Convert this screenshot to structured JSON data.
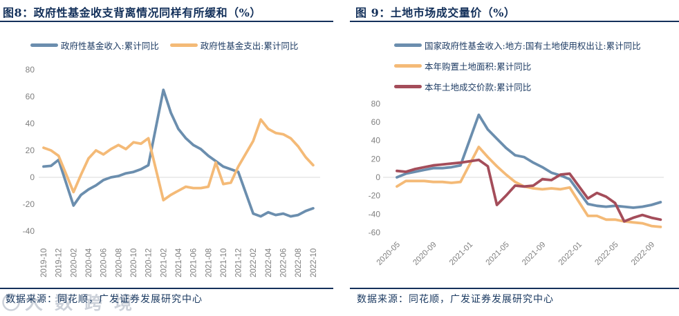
{
  "watermark": {
    "text": "大数跨境"
  },
  "figure_left": {
    "source_note": "数据来源：同花顺，广发证券发展研究中心"
  },
  "figure_right": {
    "source_note": "数据来源：同花顺，广发证券发展研究中心"
  },
  "colors": {
    "navy_text": "#13305a",
    "tick_gray": "#7f7f7f",
    "zero_line": "#d8d8d8"
  },
  "chart_data": [
    {
      "type": "line",
      "title": "图8：政府性基金收支背离情况同样有所缓和（%）",
      "ylabel": "",
      "xlabel": "",
      "ylim": [
        -40,
        80
      ],
      "y_ticks": [
        80,
        60,
        40,
        20,
        0,
        -20,
        -40
      ],
      "x_tick_every": 2,
      "grid": "zero-line-only",
      "legend_position": "top",
      "categories": [
        "2019-10",
        "2019-11",
        "2019-12",
        "2020-01",
        "2020-02",
        "2020-03",
        "2020-04",
        "2020-05",
        "2020-06",
        "2020-07",
        "2020-08",
        "2020-09",
        "2020-10",
        "2020-11",
        "2020-12",
        "2021-01",
        "2021-02",
        "2021-03",
        "2021-04",
        "2021-05",
        "2021-06",
        "2021-07",
        "2021-08",
        "2021-09",
        "2021-10",
        "2021-11",
        "2021-12",
        "2022-01",
        "2022-02",
        "2022-03",
        "2022-04",
        "2022-05",
        "2022-06",
        "2022-07",
        "2022-08",
        "2022-09",
        "2022-10"
      ],
      "series": [
        {
          "name": "政府性基金收入:累计同比",
          "color": "#6b8eae",
          "values": [
            8,
            8.5,
            13,
            null,
            -21,
            -13,
            -9,
            -6,
            -2,
            0,
            1,
            3,
            4,
            6,
            9,
            null,
            65,
            48,
            36,
            29,
            24,
            21,
            16,
            12,
            8,
            6,
            4,
            null,
            -27,
            -29,
            -26,
            -28,
            -27,
            -29,
            -28,
            -25,
            -23
          ]
        },
        {
          "name": "政府性基金支出:累计同比",
          "color": "#f4ba77",
          "values": [
            22,
            20,
            16,
            null,
            -11,
            2,
            14,
            20,
            17,
            21,
            24,
            21,
            26,
            25,
            29,
            null,
            -17,
            -13,
            -10,
            -7,
            -8,
            -8,
            -7,
            11,
            -5,
            -4,
            8,
            null,
            27,
            43,
            36,
            33,
            32,
            29,
            23,
            15,
            9
          ]
        }
      ]
    },
    {
      "type": "line",
      "title": "图 9：土地市场成交量价（%）",
      "ylabel": "",
      "xlabel": "",
      "ylim": [
        -60,
        80
      ],
      "y_ticks": [
        80,
        60,
        40,
        20,
        0,
        -20,
        -40,
        -60
      ],
      "x_tick_every": 4,
      "grid": "zero-line-only",
      "legend_position": "top",
      "categories": [
        "2020-05",
        "2020-06",
        "2020-07",
        "2020-08",
        "2020-09",
        "2020-10",
        "2020-11",
        "2020-12",
        "2021-01",
        "2021-02",
        "2021-03",
        "2021-04",
        "2021-05",
        "2021-06",
        "2021-07",
        "2021-08",
        "2021-09",
        "2021-10",
        "2021-11",
        "2021-12",
        "2022-01",
        "2022-02",
        "2022-03",
        "2022-04",
        "2022-05",
        "2022-06",
        "2022-07",
        "2022-08",
        "2022-09",
        "2022-10"
      ],
      "series": [
        {
          "name": "国家政府性基金收入:地方:国有土地使用权出让:累计同比",
          "color": "#6b8eae",
          "values": [
            0,
            4,
            6,
            8,
            10,
            10,
            11,
            13,
            null,
            68,
            52,
            42,
            32,
            24,
            22,
            16,
            11,
            5,
            2,
            -2,
            null,
            -29,
            -31,
            -32,
            -31,
            -32,
            -33,
            -32,
            -30,
            -27
          ]
        },
        {
          "name": "本年购置土地面积:累计同比",
          "color": "#f4ba77",
          "values": [
            -10,
            -4,
            -4,
            -4,
            -5,
            -5,
            -6,
            -5,
            null,
            33,
            22,
            12,
            3,
            -5,
            -10,
            -12,
            -13,
            -12,
            -13,
            -11,
            null,
            -42,
            -42,
            -46,
            -46,
            -48,
            -49,
            -50,
            -53,
            -54
          ]
        },
        {
          "name": "本年土地成交价款:累计同比",
          "color": "#a44d5a",
          "values": [
            7,
            6,
            9,
            11,
            13,
            14,
            15,
            16,
            null,
            19,
            12,
            -30,
            -20,
            -9,
            -10,
            -9,
            -2,
            -3,
            3,
            4,
            null,
            -23,
            -17,
            -21,
            -28,
            -48,
            -44,
            -41,
            -44,
            -46
          ]
        }
      ]
    }
  ]
}
